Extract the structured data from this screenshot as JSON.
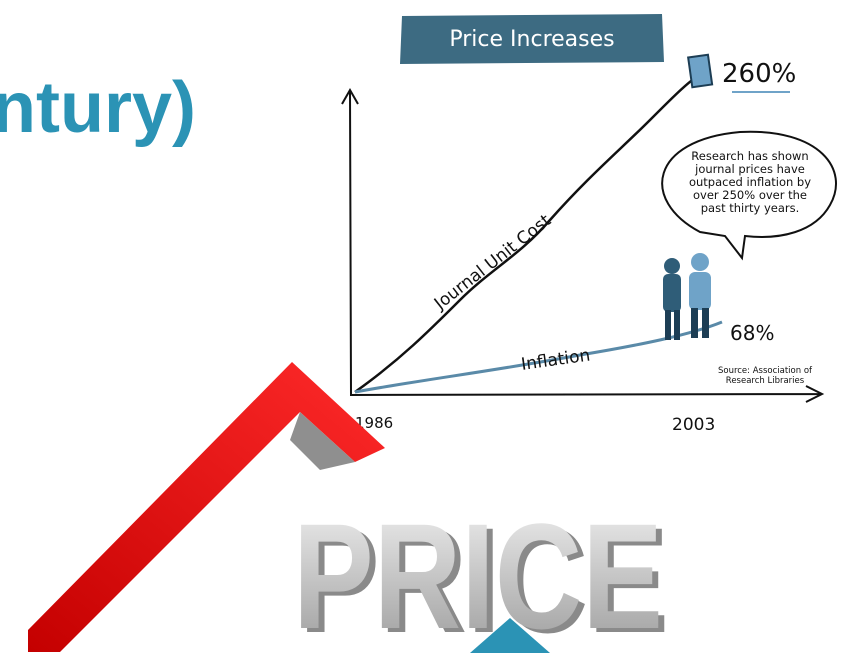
{
  "slide": {
    "title_fragment": "ntury)"
  },
  "illustration": {
    "banner": "Price Increases",
    "top_label": "260%",
    "speech_bubble": [
      "Research has shown",
      "journal prices have",
      "outpaced inflation by",
      "over 250% over the",
      "past thirty years."
    ],
    "upper_line_label": "Journal Unit Cost",
    "lower_line_label": "Inflation",
    "lower_end_label": "68%",
    "source": [
      "Source: Association of",
      "Research Libraries"
    ],
    "start_label": "1986",
    "end_label": "2003"
  },
  "graphic": {
    "word": "PRICE"
  }
}
